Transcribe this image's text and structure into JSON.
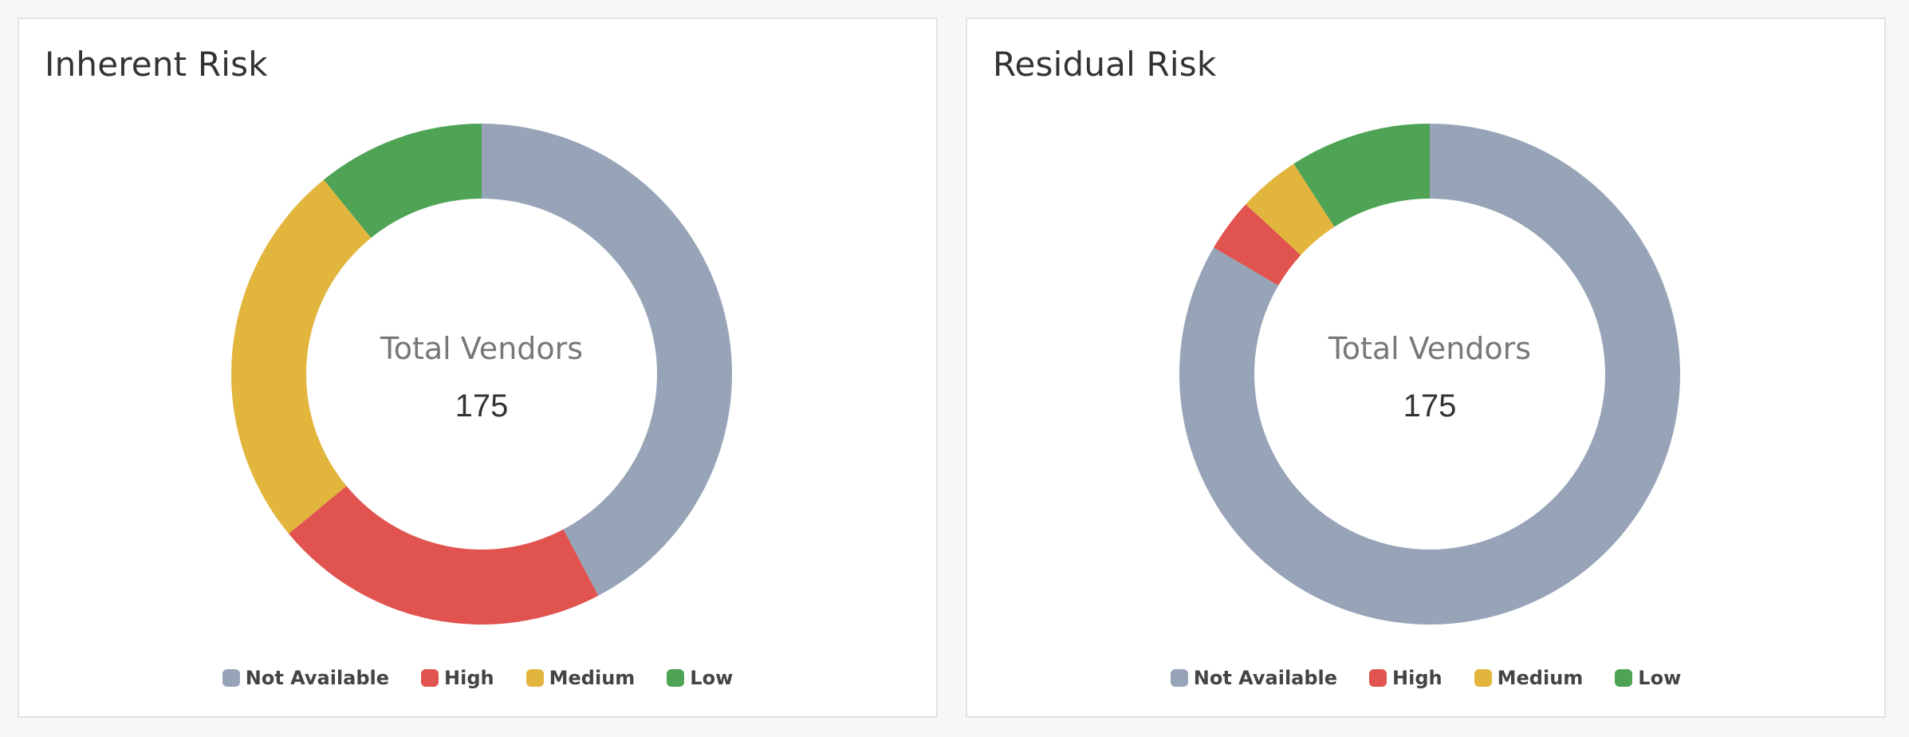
{
  "chart_data": [
    {
      "type": "donut",
      "title": "Inherent Risk",
      "center_label": "Total Vendors",
      "center_value": "175",
      "categories": [
        "Not Available",
        "High",
        "Medium",
        "Low"
      ],
      "values": [
        74,
        38,
        44,
        19
      ],
      "colors": [
        "#97a4b7",
        "#e0534e",
        "#e2b53d",
        "#4ea354"
      ],
      "legend_position": "bottom"
    },
    {
      "type": "donut",
      "title": "Residual Risk",
      "center_label": "Total Vendors",
      "center_value": "175",
      "categories": [
        "Not Available",
        "High",
        "Medium",
        "Low"
      ],
      "values": [
        146,
        6,
        7,
        16
      ],
      "colors": [
        "#97a4b7",
        "#e0534e",
        "#e2b53d",
        "#4ea354"
      ],
      "legend_position": "bottom"
    }
  ]
}
